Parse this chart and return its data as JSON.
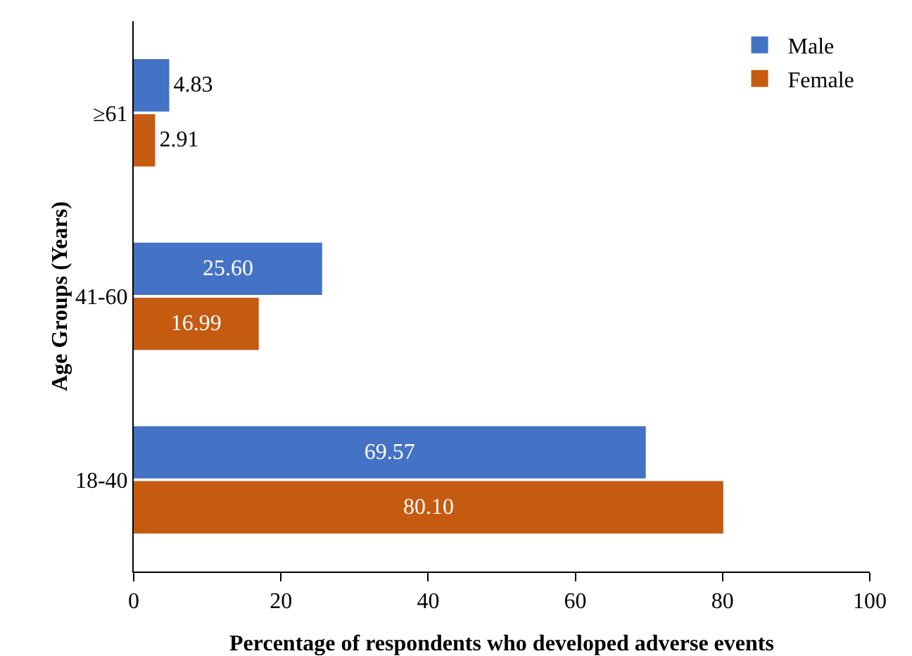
{
  "chart_data": {
    "type": "bar",
    "orientation": "horizontal",
    "xlabel": "Percentage of respondents who developed adverse events",
    "ylabel": "Age Groups (Years)",
    "categories": [
      "≥61",
      "41-60",
      "18-40"
    ],
    "series": [
      {
        "name": "Male",
        "color": "#4472c4",
        "values": [
          4.83,
          25.6,
          69.57
        ],
        "value_labels": [
          "4.83",
          "25.60",
          "69.57"
        ]
      },
      {
        "name": "Female",
        "color": "#c55a11",
        "values": [
          2.91,
          16.99,
          80.1
        ],
        "value_labels": [
          "2.91",
          "16.99",
          "80.10"
        ]
      }
    ],
    "xlim": [
      0,
      100
    ],
    "xticks": [
      0,
      20,
      40,
      60,
      80,
      100
    ],
    "grid": false,
    "legend": "top right"
  }
}
